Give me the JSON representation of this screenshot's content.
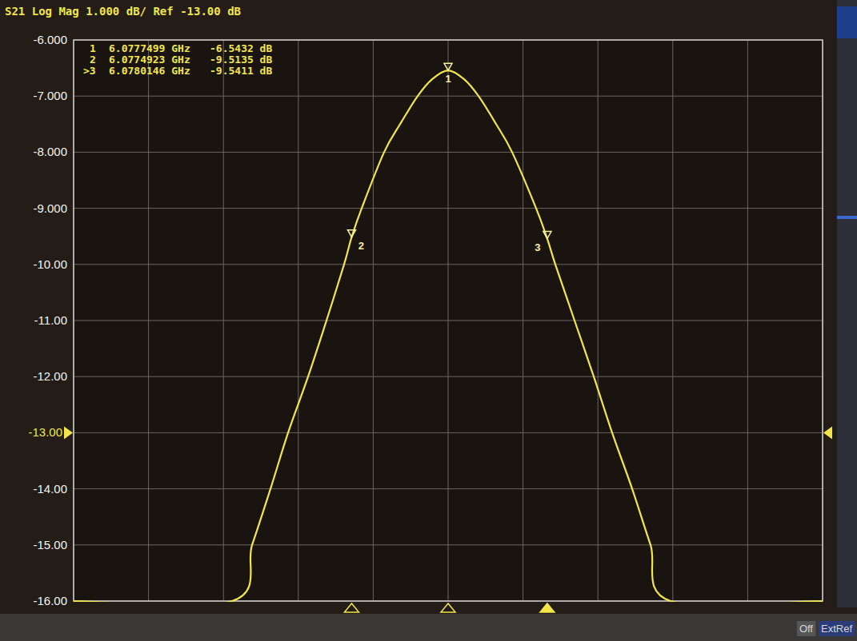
{
  "chart_data": {
    "type": "line",
    "title": "S21 Log Mag 1.000 dB/ Ref -13.00 dB",
    "color": "#f2e64a",
    "x": [
      6.0767499,
      6.077173,
      6.0772264,
      6.0772756,
      6.0773226,
      6.077376,
      6.0774251,
      6.0774721,
      6.0774923,
      6.0775191,
      6.077579,
      6.0776217,
      6.0776687,
      6.0777072,
      6.0777499,
      6.0777926,
      6.0778311,
      6.0778781,
      6.0779208,
      6.0779849,
      6.0780146,
      6.0780362,
      6.0780875,
      6.0781388,
      6.0781879,
      6.0782414,
      6.0782905,
      6.0783439,
      6.0787499
    ],
    "values": [
      -16,
      -16,
      -15,
      -14,
      -13,
      -12,
      -11,
      -10,
      -9.5135,
      -9,
      -8,
      -7.5,
      -7,
      -6.7,
      -6.5432,
      -6.7,
      -7,
      -7.5,
      -8,
      -9,
      -9.5411,
      -10,
      -11,
      -12,
      -13,
      -14,
      -15,
      -16,
      -16
    ],
    "xlim": [
      6.0767499,
      6.0787499
    ],
    "xticks": [
      6.0767499,
      6.0769499,
      6.0771499,
      6.0773499,
      6.0775499,
      6.0777499,
      6.0779499,
      6.0781499,
      6.0783499,
      6.0785499,
      6.0787499
    ],
    "ylim": [
      -16,
      -6
    ],
    "yticks": [
      {
        "value": -6,
        "label": "-6.000"
      },
      {
        "value": -7,
        "label": "-7.000"
      },
      {
        "value": -8,
        "label": "-8.000"
      },
      {
        "value": -9,
        "label": "-9.000"
      },
      {
        "value": -10,
        "label": "-10.00"
      },
      {
        "value": -11,
        "label": "-11.00"
      },
      {
        "value": -12,
        "label": "-12.00"
      },
      {
        "value": -13,
        "label": "-13.00"
      },
      {
        "value": -14,
        "label": "-14.00"
      },
      {
        "value": -15,
        "label": "-15.00"
      },
      {
        "value": -16,
        "label": "-16.00"
      }
    ],
    "ref_level": -13,
    "grid": true,
    "tick_labels": "y",
    "markers": [
      {
        "name": "1",
        "list_name": "1",
        "x": 6.0777499,
        "y": -6.5432,
        "x_label": "6.0777499 GHz",
        "y_label": "-6.5432 dB"
      },
      {
        "name": "2",
        "list_name": "2",
        "x": 6.0774923,
        "y": -9.5135,
        "x_label": "6.0774923 GHz",
        "y_label": "-9.5135 dB"
      },
      {
        "name": "3",
        "list_name": ">3",
        "x": 6.0780146,
        "y": -9.5411,
        "x_label": "6.0780146 GHz",
        "y_label": "-9.5411 dB"
      }
    ],
    "status": [
      "Off",
      "ExtRef"
    ]
  }
}
